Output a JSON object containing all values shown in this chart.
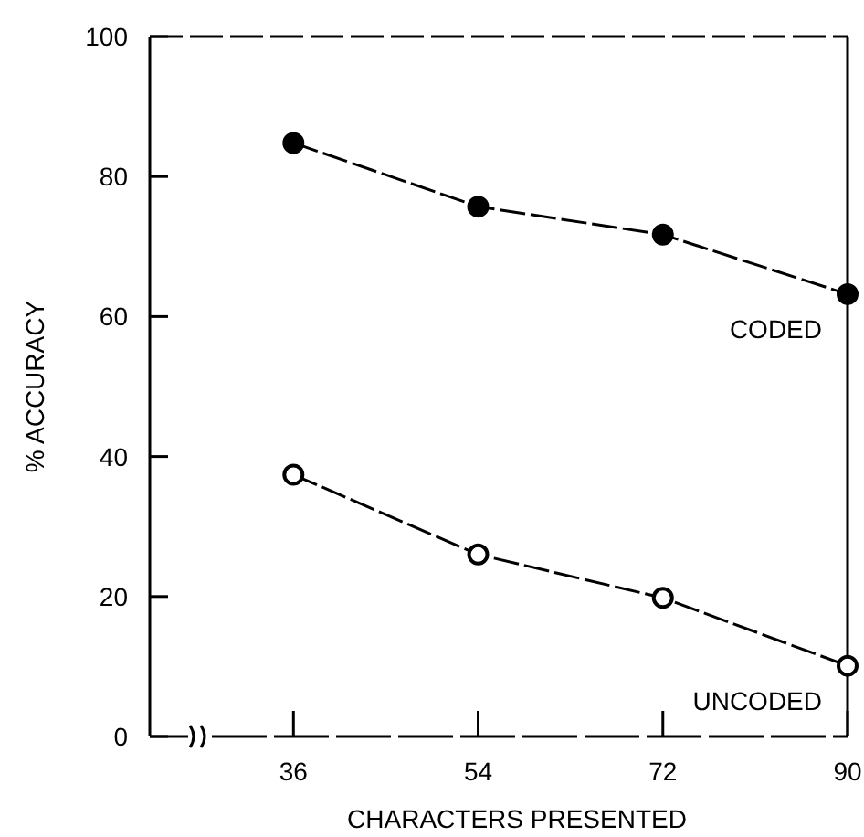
{
  "chart_data": {
    "type": "line",
    "xlabel": "CHARACTERS PRESENTED",
    "ylabel": "% ACCURACY",
    "x": [
      36,
      54,
      72,
      90
    ],
    "xlim": [
      22,
      90
    ],
    "xticks": [
      36,
      54,
      72,
      90
    ],
    "ylim": [
      0,
      100
    ],
    "yticks": [
      0,
      20,
      40,
      60,
      80,
      100
    ],
    "marker": "circle",
    "line_style": "dashed",
    "grid": false,
    "series": [
      {
        "name": "CODED",
        "color": "#000000",
        "values": [
          84.8,
          75.7,
          71.7,
          63.2
        ]
      },
      {
        "name": "UNCODED",
        "color": "#000000",
        "values": [
          37.4,
          26,
          19.8,
          10.1
        ]
      }
    ]
  }
}
